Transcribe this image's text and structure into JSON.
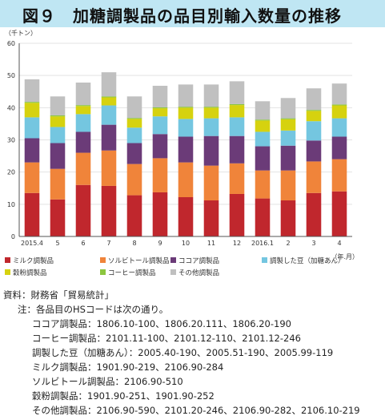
{
  "title": "図９　加糖調製品の品目別輸入数量の推移",
  "chart_data": {
    "type": "bar",
    "stacked": true,
    "unit_label": "（千トン）",
    "xlabel": "（年.月）",
    "ylim": [
      0,
      60
    ],
    "yticks": [
      0,
      10,
      20,
      30,
      40,
      50,
      60
    ],
    "categories": [
      "2015.4",
      "5",
      "6",
      "7",
      "8",
      "9",
      "10",
      "11",
      "12",
      "2016.1",
      "2",
      "3",
      "4"
    ],
    "series": [
      {
        "name": "ミルク調製品",
        "color": "#c0272d",
        "values": [
          13.5,
          11.5,
          16.0,
          15.7,
          12.8,
          13.7,
          12.2,
          11.2,
          13.2,
          11.8,
          11.2,
          13.5,
          14.0
        ]
      },
      {
        "name": "ソルビトール調製品",
        "color": "#f0843a",
        "values": [
          9.5,
          9.5,
          10.0,
          11.0,
          9.7,
          10.6,
          10.8,
          10.8,
          9.5,
          8.7,
          9.3,
          9.8,
          10.0
        ]
      },
      {
        "name": "ココア調製品",
        "color": "#6b3b78",
        "values": [
          7.5,
          8.0,
          6.5,
          8.0,
          6.5,
          7.5,
          8.0,
          9.2,
          8.5,
          7.5,
          7.7,
          6.5,
          7.0
        ]
      },
      {
        "name": "調製した豆（加糖あん）",
        "color": "#74c6e0",
        "values": [
          6.5,
          5.0,
          5.5,
          6.0,
          4.8,
          5.5,
          5.5,
          5.5,
          5.8,
          4.5,
          4.7,
          6.0,
          5.7
        ]
      },
      {
        "name": "穀粉調製品",
        "color": "#d6d20f",
        "values": [
          4.5,
          3.3,
          2.5,
          2.5,
          2.7,
          2.5,
          3.5,
          3.3,
          3.8,
          3.5,
          3.5,
          3.2,
          4.0
        ]
      },
      {
        "name": "コーヒー調製品",
        "color": "#8cc63f",
        "values": [
          0.3,
          0.3,
          0.3,
          0.3,
          0.3,
          0.3,
          0.3,
          0.3,
          0.3,
          0.3,
          0.3,
          0.3,
          0.3
        ]
      },
      {
        "name": "その他調製品",
        "color": "#c0c0c0",
        "values": [
          7.0,
          5.9,
          7.0,
          7.5,
          6.7,
          6.7,
          6.9,
          6.9,
          7.1,
          5.7,
          6.3,
          6.7,
          6.5
        ]
      }
    ],
    "legend_position": "bottom"
  },
  "source_text": "資料：財務省「貿易統計」",
  "notes": [
    "注：各品目のHSコードは次の通り。",
    "ココア調製品：1806.10-100、1806.20.111、1806.20-190",
    "コーヒー調製品：2101.11-100、2101.12-110、2101.12-246",
    "調製した豆（加糖あん）：2005.40-190、2005.51-190、2005.99-119",
    "ミルク調製品：1901.90-219、2106.90-284",
    "ソルビトール調製品：2106.90-510",
    "穀粉調製品：1901.90-251、1901.90-252",
    "その他調製品：2106.90-590、2101.20-246、2106.90-282、2106.10-219"
  ]
}
